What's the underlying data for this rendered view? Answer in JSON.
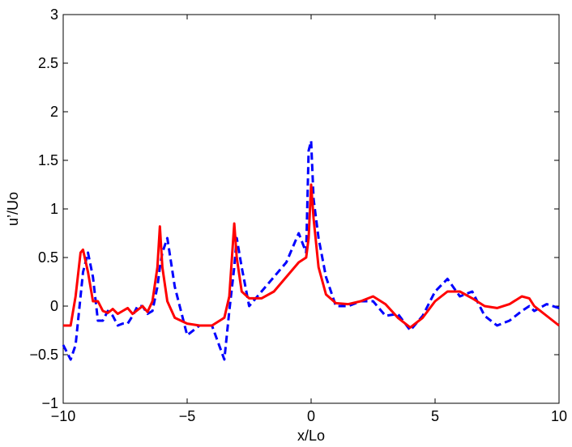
{
  "chart_data": {
    "type": "line",
    "xlabel": "x/Lo",
    "ylabel": "u’/Uo",
    "x": [
      -10,
      -9.7,
      -9.5,
      -9.3,
      -9.2,
      -9,
      -8.8,
      -8.6,
      -8.4,
      -8.2,
      -8,
      -7.8,
      -7.6,
      -7.4,
      -7.2,
      -7,
      -6.8,
      -6.6,
      -6.4,
      -6.2,
      -6.1,
      -6,
      -5.8,
      -5.5,
      -5,
      -4.5,
      -4,
      -3.5,
      -3.3,
      -3.1,
      -3,
      -2.8,
      -2.5,
      -2,
      -1.5,
      -1,
      -0.5,
      -0.2,
      -0.1,
      0,
      0.1,
      0.3,
      0.6,
      1,
      1.5,
      2,
      2.5,
      3,
      3.5,
      4,
      4.5,
      5,
      5.5,
      6,
      6.5,
      7,
      7.5,
      8,
      8.5,
      8.8,
      9,
      9.5,
      10
    ],
    "series": [
      {
        "color": "#ff0000",
        "dash": "solid",
        "values": [
          -0.2,
          -0.2,
          0.1,
          0.55,
          0.58,
          0.35,
          0.05,
          0.05,
          -0.05,
          -0.07,
          -0.03,
          -0.08,
          -0.05,
          -0.02,
          -0.08,
          -0.04,
          0,
          -0.06,
          0.05,
          0.4,
          0.82,
          0.4,
          0.05,
          -0.12,
          -0.18,
          -0.2,
          -0.2,
          -0.12,
          0.1,
          0.85,
          0.5,
          0.15,
          0.08,
          0.08,
          0.15,
          0.3,
          0.45,
          0.5,
          0.7,
          1.25,
          0.9,
          0.4,
          0.12,
          0.03,
          0.02,
          0.05,
          0.1,
          0.02,
          -0.12,
          -0.22,
          -0.12,
          0.05,
          0.15,
          0.15,
          0.08,
          0,
          -0.02,
          0.02,
          0.1,
          0.08,
          0,
          -0.1,
          -0.2
        ]
      },
      {
        "color": "#0000ff",
        "dash": "dashed",
        "values": [
          -0.4,
          -0.55,
          -0.4,
          0.1,
          0.35,
          0.55,
          0.3,
          -0.15,
          -0.15,
          -0.05,
          -0.1,
          -0.2,
          -0.18,
          -0.18,
          -0.1,
          0,
          0,
          -0.08,
          -0.05,
          0.2,
          0.4,
          0.55,
          0.7,
          0.2,
          -0.3,
          -0.2,
          -0.2,
          -0.55,
          -0.05,
          0.4,
          0.7,
          0.4,
          0,
          0.15,
          0.3,
          0.45,
          0.75,
          0.55,
          1.6,
          1.7,
          1.1,
          0.7,
          0.3,
          0,
          0,
          0.05,
          0.05,
          -0.1,
          -0.08,
          -0.25,
          -0.1,
          0.15,
          0.28,
          0.1,
          0.15,
          -0.1,
          -0.2,
          -0.15,
          -0.05,
          0,
          -0.05,
          0.02,
          -0.02
        ]
      }
    ],
    "xlim": [
      -10,
      10
    ],
    "xticks": [
      {
        "value": -10,
        "label": "−10"
      },
      {
        "value": -5,
        "label": "−5"
      },
      0,
      5,
      10
    ],
    "ylim": [
      -1,
      3
    ],
    "yticks": [
      {
        "value": -1,
        "label": "−1"
      },
      {
        "value": -0.5,
        "label": "−0.5"
      },
      0,
      0.5,
      1,
      1.5,
      2,
      2.5,
      3
    ]
  }
}
